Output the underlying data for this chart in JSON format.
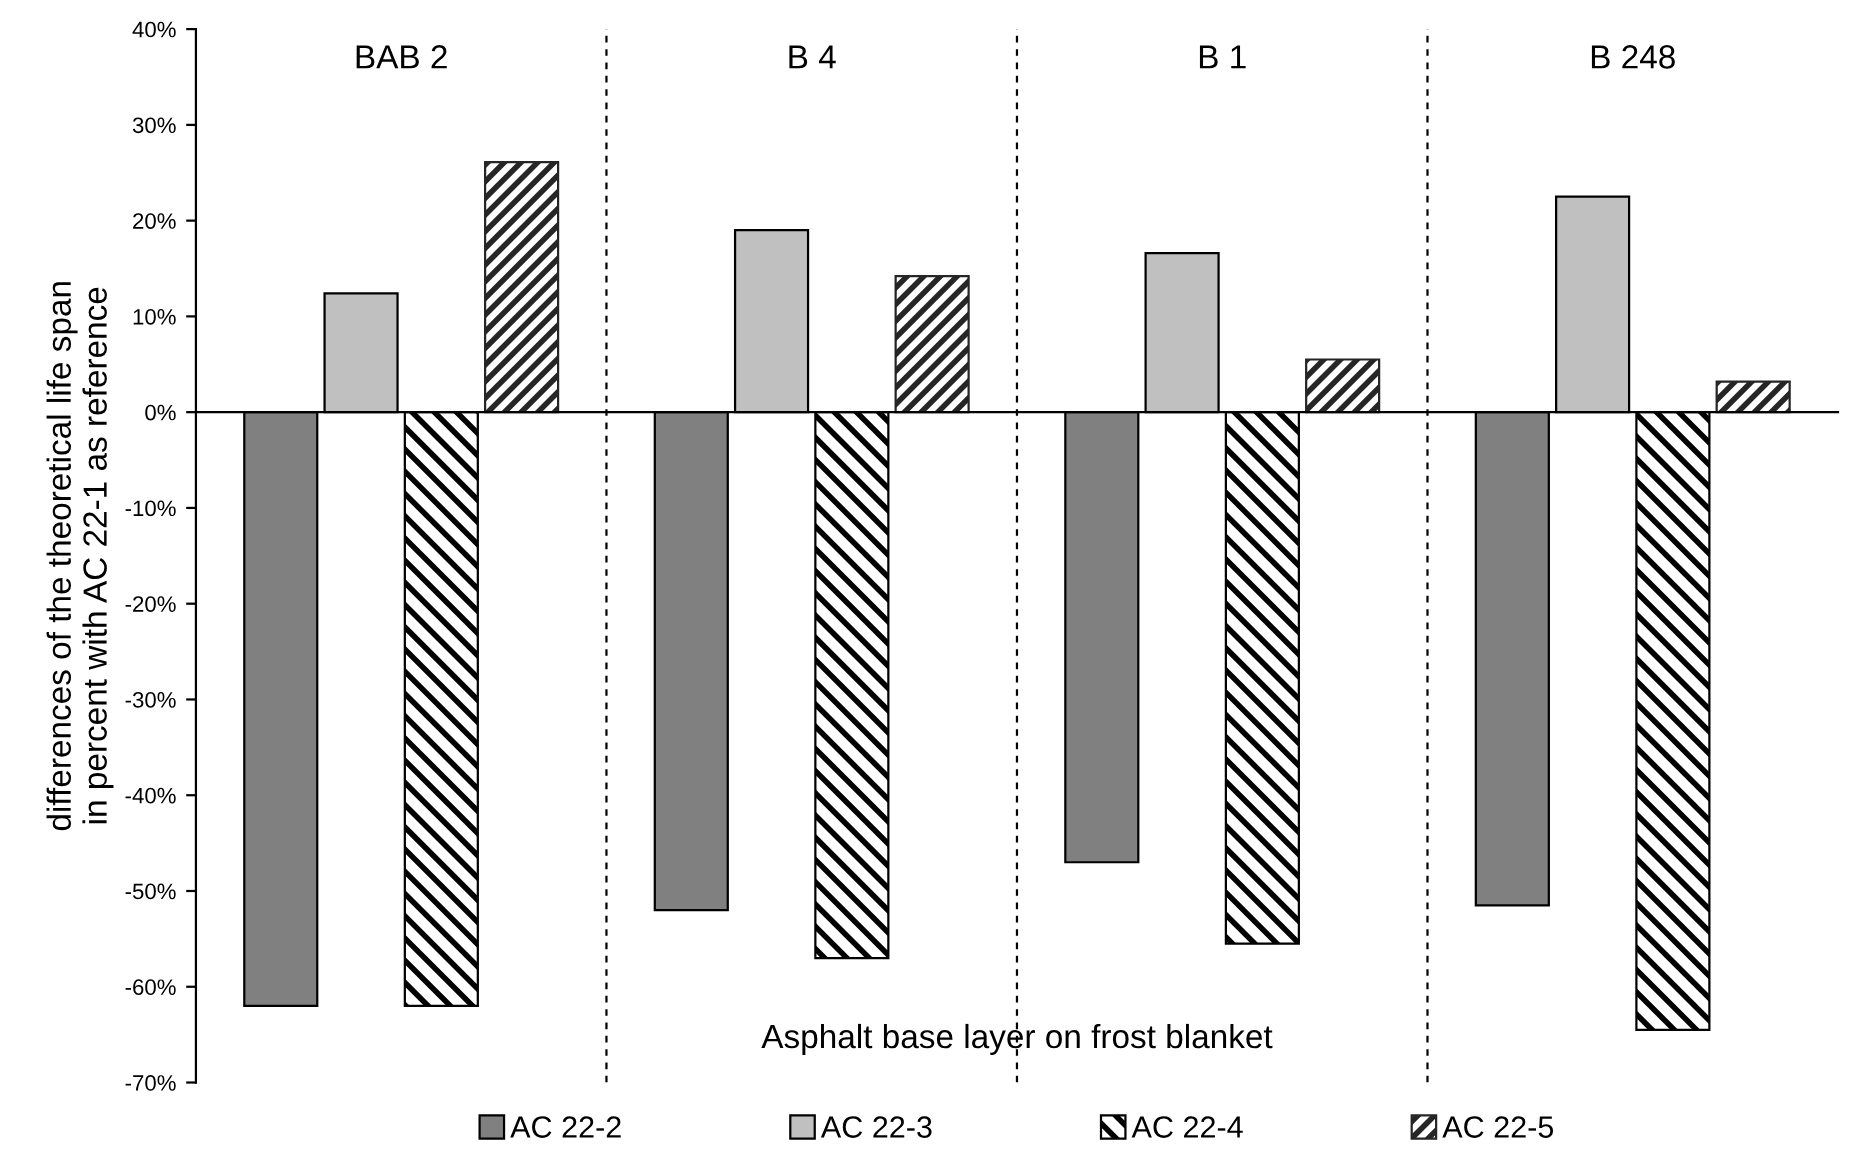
{
  "chart_data": {
    "type": "bar",
    "ylabel": "differences of the theoretical life span\nin percent with AC 22-1 as reference",
    "categories": [
      "BAB 2",
      "B 4",
      "B 1",
      "B 248"
    ],
    "series": [
      {
        "name": "AC 22-2",
        "color": "#808080",
        "values": [
          -62,
          -52,
          -47,
          -51.5
        ]
      },
      {
        "name": "AC 22-3",
        "color": "#c0c0c0",
        "values": [
          12.4,
          19,
          16.6,
          22.5
        ]
      },
      {
        "name": "AC 22-4",
        "color": "#000000",
        "values": [
          -62,
          -57,
          -55.5,
          -64.5
        ]
      },
      {
        "name": "AC 22-5",
        "color": "#262626",
        "values": [
          26.1,
          14.2,
          5.5,
          3.2
        ]
      }
    ],
    "ylim": [
      -70,
      40
    ],
    "yticks": [
      {
        "value": 40,
        "label": "40%"
      },
      {
        "value": 30,
        "label": "30%"
      },
      {
        "value": 20,
        "label": "20%"
      },
      {
        "value": 10,
        "label": "10%"
      },
      {
        "value": 0,
        "label": "0%"
      },
      {
        "value": -10,
        "label": "-10%"
      },
      {
        "value": -20,
        "label": "-20%"
      },
      {
        "value": -30,
        "label": "-30%"
      },
      {
        "value": -40,
        "label": "-40%"
      },
      {
        "value": -50,
        "label": "-50%"
      },
      {
        "value": -60,
        "label": "-60%"
      },
      {
        "value": -70,
        "label": "-70%"
      }
    ],
    "annotations": [
      "Asphalt base layer on frost blanket"
    ],
    "grid": "x",
    "legend": "bottom"
  }
}
